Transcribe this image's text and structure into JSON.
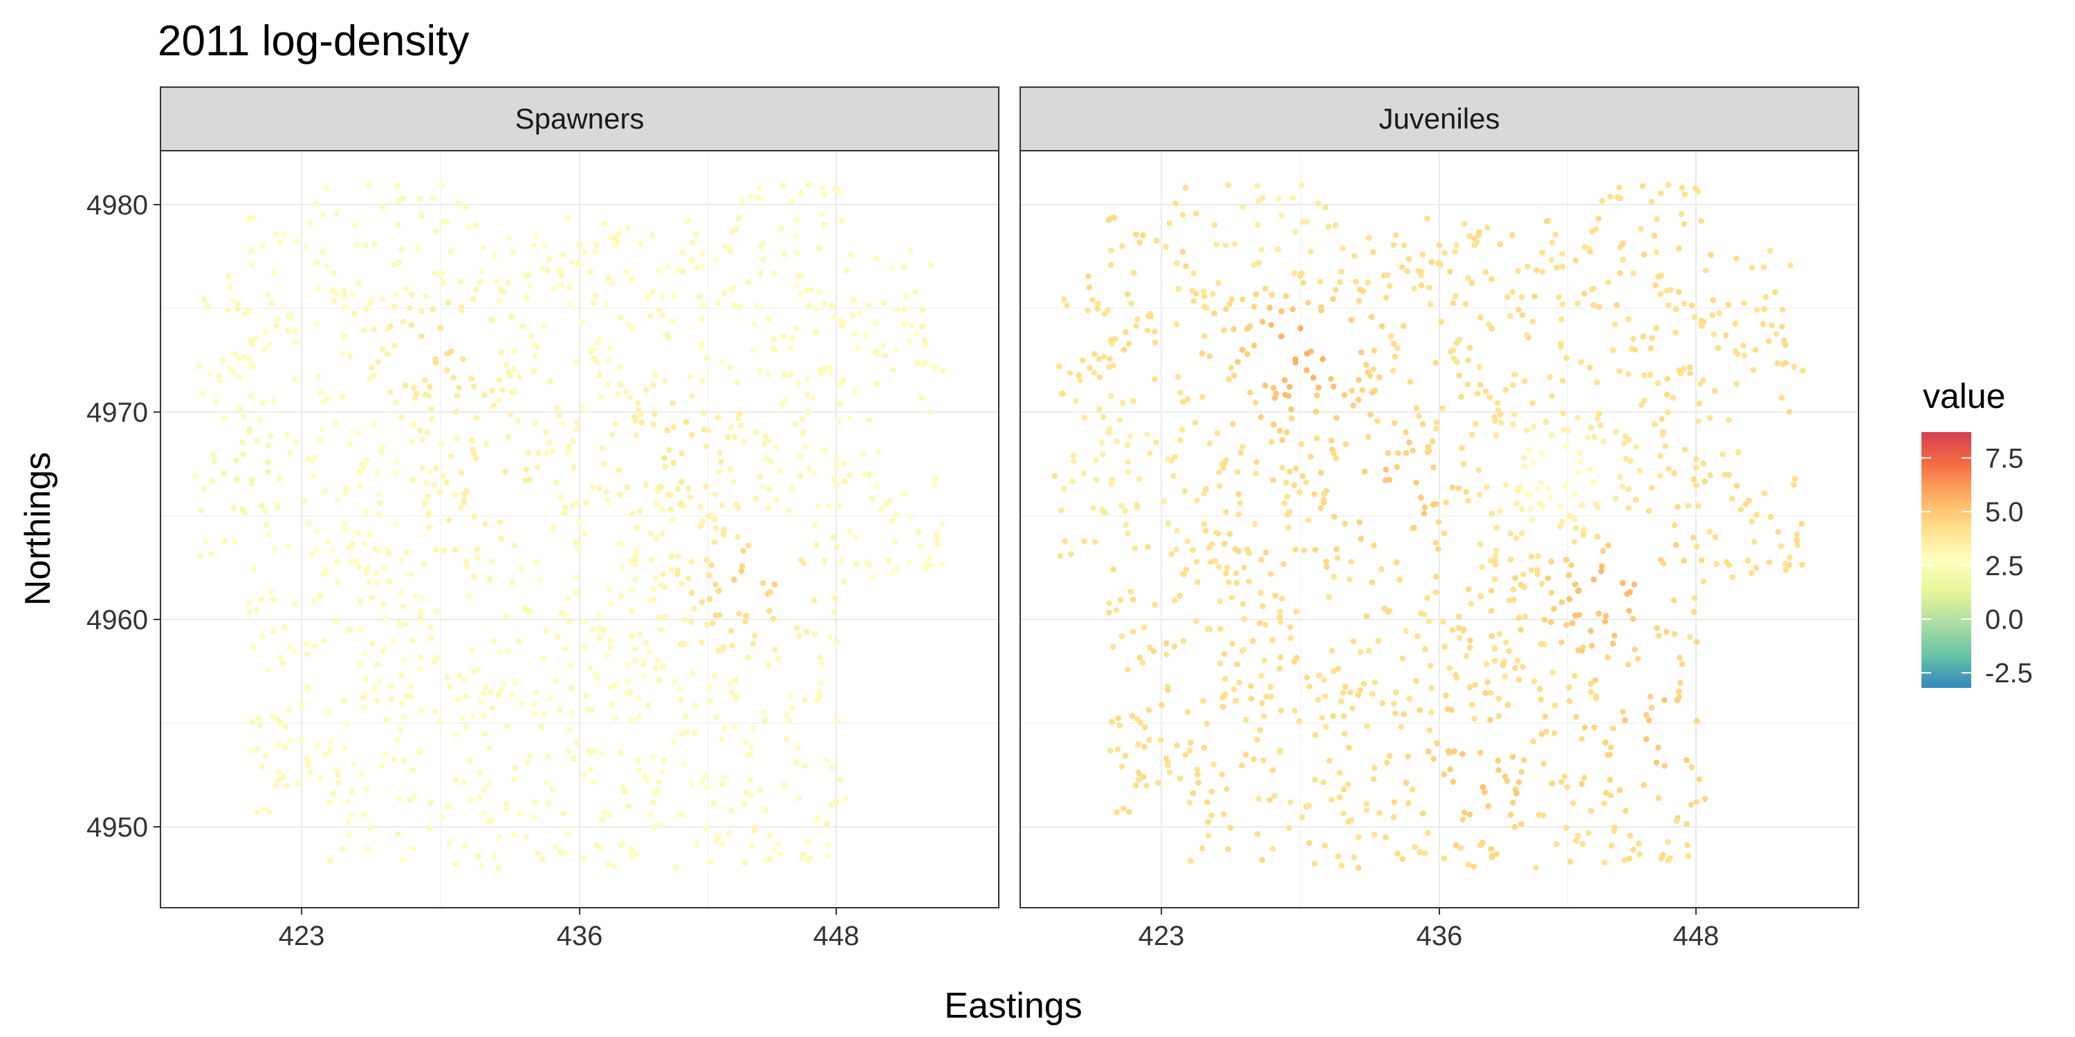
{
  "chart_data": {
    "type": "scatter",
    "title": "2011 log-density",
    "xlabel": "Eastings",
    "ylabel": "Northings",
    "facets": [
      "Spawners",
      "Juveniles"
    ],
    "x_ticks": [
      423,
      436,
      448
    ],
    "y_ticks": [
      4950,
      4960,
      4970,
      4980
    ],
    "xlim": [
      416.4,
      455.6
    ],
    "ylim": [
      4946.1,
      4982.6
    ],
    "grid": true,
    "legend": {
      "title": "value",
      "position": "right",
      "ticks": [
        7.5,
        5.0,
        2.5,
        0.0,
        -2.5
      ],
      "tick_labels": [
        "7.5",
        "5.0",
        "2.5",
        "0.0",
        "-2.5"
      ],
      "range": [
        -3.2,
        8.7
      ],
      "palette": [
        "#3288bd",
        "#66c2a5",
        "#abdda4",
        "#e6f598",
        "#ffffbf",
        "#fee08b",
        "#fdae61",
        "#f46d43",
        "#d53e4f"
      ]
    },
    "region": {
      "east_range": [
        418,
        453
      ],
      "north_range": [
        4948,
        4981
      ]
    },
    "series": [
      {
        "name": "Spawners",
        "base_value": 2.9,
        "hotspots": [
          {
            "x": 429.5,
            "y": 4972.8,
            "value": 4.2
          },
          {
            "x": 440.3,
            "y": 4968.6,
            "value": 3.9
          },
          {
            "x": 443.8,
            "y": 4961.6,
            "value": 4.8
          },
          {
            "x": 432.0,
            "y": 4965.5,
            "value": 3.6
          }
        ],
        "coldspots": [
          {
            "x": 420.5,
            "y": 4967.0,
            "value": 2.0
          },
          {
            "x": 428.0,
            "y": 4979.0,
            "value": 2.3
          }
        ]
      },
      {
        "name": "Juveniles",
        "base_value": 4.2,
        "hotspots": [
          {
            "x": 429.5,
            "y": 4972.8,
            "value": 5.7
          },
          {
            "x": 443.8,
            "y": 4961.6,
            "value": 5.6
          },
          {
            "x": 434.0,
            "y": 4966.0,
            "value": 5.0
          },
          {
            "x": 446.0,
            "y": 4954.0,
            "value": 5.0
          },
          {
            "x": 438.0,
            "y": 4952.0,
            "value": 5.0
          }
        ],
        "coldspots": [
          {
            "x": 441.5,
            "y": 4966.5,
            "value": 2.6
          },
          {
            "x": 421.0,
            "y": 4967.5,
            "value": 3.4
          },
          {
            "x": 428.5,
            "y": 4979.5,
            "value": 3.4
          }
        ]
      }
    ]
  }
}
